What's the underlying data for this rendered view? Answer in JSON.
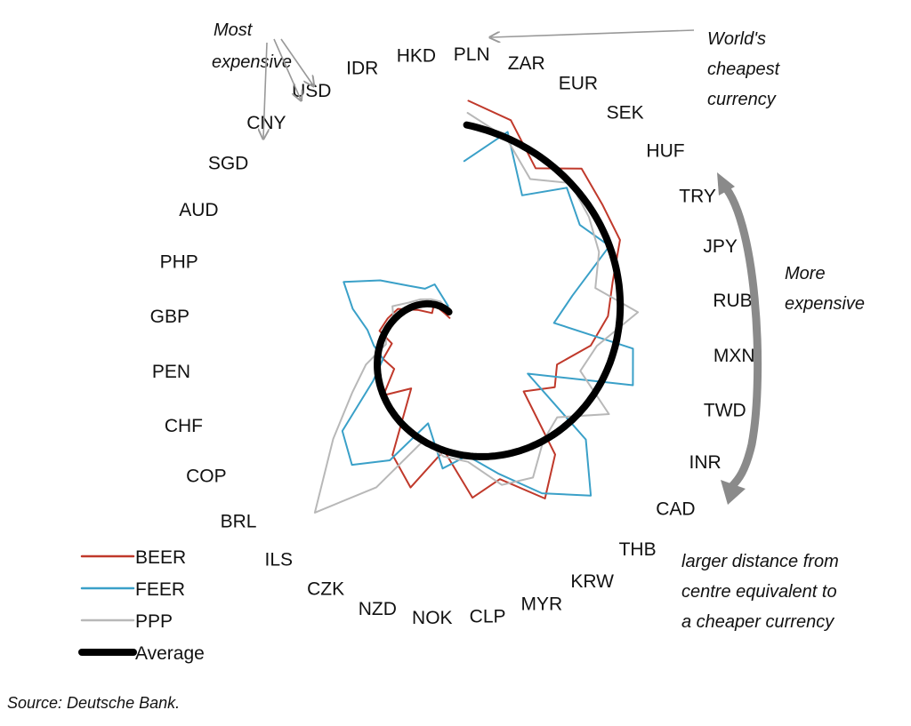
{
  "chart_data": {
    "type": "radar",
    "source": "Source: Deutsche Bank.",
    "currencies": [
      "PLN",
      "ZAR",
      "EUR",
      "SEK",
      "HUF",
      "TRY",
      "JPY",
      "RUB",
      "MXN",
      "TWD",
      "INR",
      "CAD",
      "THB",
      "KRW",
      "MYR",
      "CLP",
      "NOK",
      "NZD",
      "CZK",
      "ILS",
      "BRL",
      "COP",
      "CHF",
      "PEN",
      "GBP",
      "PHP",
      "AUD",
      "SGD",
      "CNY",
      "USD",
      "IDR",
      "HKD"
    ],
    "series": [
      {
        "name": "BEER",
        "color": "#c0392b",
        "values": [
          0.78,
          0.74,
          0.62,
          0.7,
          0.66,
          0.64,
          0.56,
          0.52,
          0.46,
          0.36,
          0.38,
          0.3,
          0.52,
          0.62,
          0.5,
          0.54,
          0.38,
          0.52,
          0.44,
          0.22,
          0.3,
          0.22,
          0.24,
          0.2,
          0.24,
          0.22,
          0.2,
          0.14,
          0.1,
          0.12,
          0.08,
          0.06
        ]
      },
      {
        "name": "FEER",
        "color": "#3aa0c8",
        "values": [
          0.58,
          0.7,
          0.52,
          0.62,
          0.56,
          0.6,
          0.42,
          0.34,
          0.6,
          0.62,
          0.28,
          0.56,
          0.7,
          0.6,
          0.48,
          0.4,
          0.44,
          0.3,
          0.46,
          0.54,
          0.48,
          0.3,
          0.24,
          0.26,
          0.28,
          0.34,
          0.4,
          0.3,
          0.22,
          0.18,
          0.18,
          0.1
        ]
      },
      {
        "name": "PPP",
        "color": "#b8b8b8",
        "values": [
          0.74,
          0.68,
          0.58,
          0.64,
          0.6,
          0.56,
          0.5,
          0.62,
          0.48,
          0.44,
          0.58,
          0.44,
          0.46,
          0.54,
          0.52,
          0.42,
          0.4,
          0.36,
          0.56,
          0.74,
          0.52,
          0.38,
          0.3,
          0.22,
          0.22,
          0.2,
          0.22,
          0.18,
          0.16,
          0.14,
          0.12,
          0.08
        ]
      },
      {
        "name": "Average",
        "color": "#000000",
        "values": [
          0.7,
          0.68,
          0.66,
          0.64,
          0.62,
          0.6,
          0.58,
          0.56,
          0.54,
          0.52,
          0.5,
          0.48,
          0.46,
          0.44,
          0.42,
          0.4,
          0.38,
          0.36,
          0.34,
          0.32,
          0.3,
          0.28,
          0.26,
          0.24,
          0.22,
          0.2,
          0.18,
          0.16,
          0.14,
          0.12,
          0.1,
          0.08
        ]
      }
    ],
    "annotations": {
      "most_expensive": [
        "Most",
        "expensive"
      ],
      "cheapest": [
        "World's",
        "cheapest",
        "currency"
      ],
      "more_expensive": [
        "More",
        "expensive"
      ],
      "distance_note": [
        "larger distance  from",
        "centre equivalent to",
        "a cheaper currency"
      ]
    }
  }
}
